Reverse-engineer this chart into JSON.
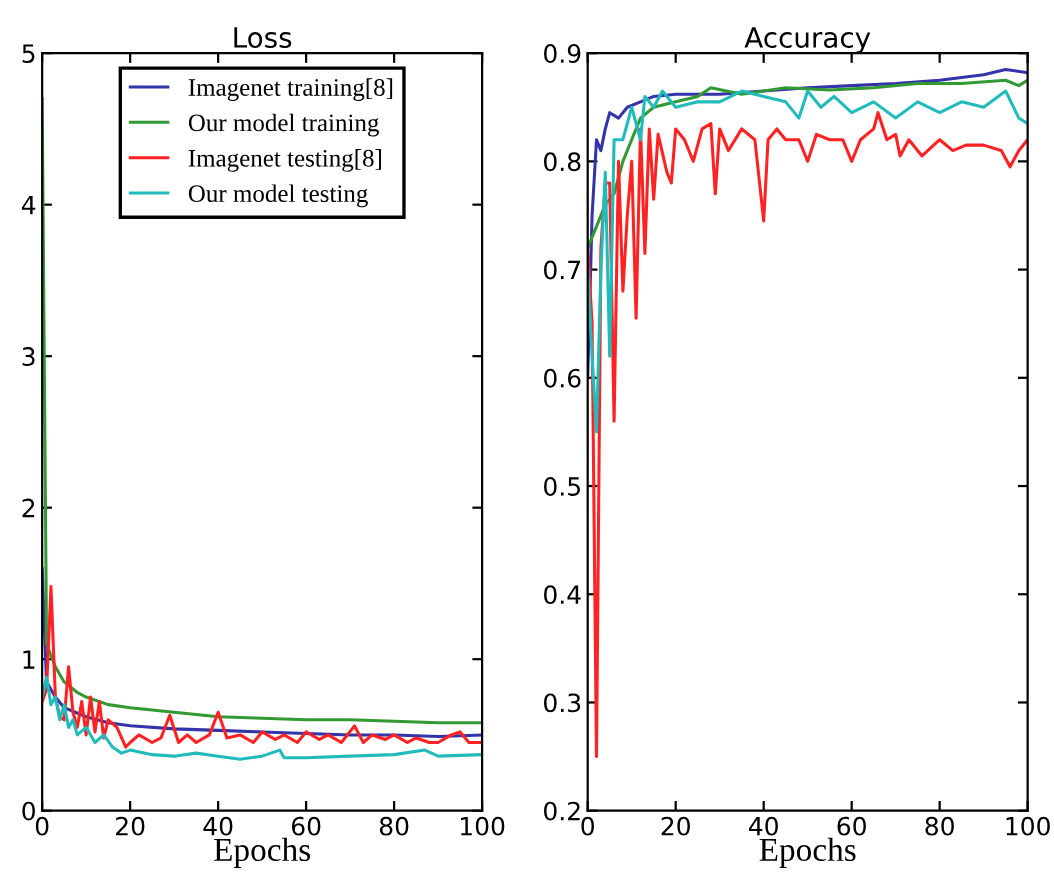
{
  "chart_data": [
    {
      "type": "line",
      "title": "Loss",
      "xlabel": "Epochs",
      "xlim": [
        0,
        100
      ],
      "xticks": [
        0,
        20,
        40,
        60,
        80,
        100
      ],
      "ylim": [
        0,
        5
      ],
      "yticks": [
        0,
        1,
        2,
        3,
        4,
        5
      ],
      "grid": false,
      "legend": "top",
      "marker": "none",
      "line_style": "solid",
      "series": [
        {
          "name": "Imagenet training[8]",
          "color": "#3333aa",
          "x": [
            0,
            1,
            3,
            5,
            10,
            15,
            20,
            30,
            40,
            50,
            60,
            70,
            80,
            90,
            100
          ],
          "values": [
            1.6,
            0.85,
            0.75,
            0.68,
            0.62,
            0.58,
            0.56,
            0.54,
            0.53,
            0.52,
            0.51,
            0.5,
            0.5,
            0.49,
            0.5
          ]
        },
        {
          "name": "Our model training",
          "color": "#339933",
          "x": [
            0,
            1,
            3,
            5,
            8,
            10,
            15,
            20,
            30,
            40,
            50,
            60,
            70,
            80,
            90,
            100
          ],
          "values": [
            4.7,
            1.1,
            0.95,
            0.85,
            0.78,
            0.75,
            0.7,
            0.68,
            0.65,
            0.62,
            0.61,
            0.6,
            0.6,
            0.59,
            0.58,
            0.58
          ]
        },
        {
          "name": "Imagenet testing[8]",
          "color": "#ff2222",
          "x": [
            0,
            1,
            2,
            3,
            4,
            5,
            6,
            7,
            8,
            9,
            10,
            11,
            12,
            13,
            14,
            15,
            17,
            19,
            20,
            22,
            25,
            27,
            29,
            31,
            33,
            35,
            38,
            40,
            42,
            45,
            48,
            50,
            53,
            55,
            58,
            60,
            63,
            65,
            68,
            71,
            73,
            75,
            78,
            80,
            83,
            85,
            88,
            90,
            93,
            95,
            97,
            100
          ],
          "values": [
            0.72,
            0.8,
            1.48,
            0.75,
            0.62,
            0.6,
            0.95,
            0.65,
            0.55,
            0.72,
            0.5,
            0.75,
            0.52,
            0.72,
            0.48,
            0.6,
            0.55,
            0.42,
            0.45,
            0.5,
            0.45,
            0.48,
            0.63,
            0.45,
            0.5,
            0.45,
            0.5,
            0.65,
            0.48,
            0.5,
            0.45,
            0.52,
            0.47,
            0.5,
            0.45,
            0.52,
            0.47,
            0.5,
            0.45,
            0.56,
            0.45,
            0.5,
            0.47,
            0.5,
            0.45,
            0.48,
            0.45,
            0.45,
            0.5,
            0.52,
            0.45,
            0.45
          ]
        },
        {
          "name": "Our model testing",
          "color": "#22bbbb",
          "x": [
            0,
            1,
            2,
            3,
            4,
            5,
            6,
            7,
            8,
            10,
            12,
            14,
            16,
            18,
            20,
            25,
            30,
            35,
            40,
            45,
            50,
            54,
            55,
            60,
            70,
            80,
            87,
            90,
            100
          ],
          "values": [
            0.75,
            0.88,
            0.7,
            0.75,
            0.6,
            0.7,
            0.55,
            0.6,
            0.5,
            0.55,
            0.45,
            0.5,
            0.42,
            0.38,
            0.4,
            0.37,
            0.36,
            0.38,
            0.36,
            0.34,
            0.36,
            0.4,
            0.35,
            0.35,
            0.36,
            0.37,
            0.4,
            0.36,
            0.37
          ]
        }
      ]
    },
    {
      "type": "line",
      "title": "Accuracy",
      "xlabel": "Epochs",
      "xlim": [
        0,
        100
      ],
      "xticks": [
        0,
        20,
        40,
        60,
        80,
        100
      ],
      "ylim": [
        0.2,
        0.9
      ],
      "yticks": [
        0.2,
        0.3,
        0.4,
        0.5,
        0.6,
        0.7,
        0.8,
        0.9
      ],
      "grid": false,
      "marker": "none",
      "line_style": "solid",
      "series": [
        {
          "color": "#3333aa",
          "x": [
            0,
            1,
            2,
            3,
            4,
            5,
            7,
            9,
            12,
            15,
            20,
            30,
            40,
            50,
            60,
            70,
            80,
            90,
            95,
            100
          ],
          "values": [
            0.6,
            0.75,
            0.82,
            0.81,
            0.83,
            0.845,
            0.84,
            0.85,
            0.855,
            0.86,
            0.862,
            0.862,
            0.865,
            0.868,
            0.87,
            0.872,
            0.875,
            0.88,
            0.885,
            0.882
          ]
        },
        {
          "color": "#339933",
          "x": [
            0,
            2,
            4,
            6,
            8,
            10,
            12,
            15,
            20,
            25,
            28,
            35,
            45,
            55,
            65,
            75,
            85,
            95,
            98,
            100
          ],
          "values": [
            0.72,
            0.74,
            0.76,
            0.77,
            0.8,
            0.82,
            0.84,
            0.85,
            0.855,
            0.86,
            0.868,
            0.862,
            0.868,
            0.866,
            0.868,
            0.872,
            0.872,
            0.875,
            0.87,
            0.875
          ]
        },
        {
          "color": "#ff2222",
          "x": [
            0,
            1,
            2,
            3,
            4,
            5,
            6,
            7,
            8,
            9,
            10,
            11,
            12,
            13,
            14,
            15,
            16,
            18,
            19,
            20,
            22,
            24,
            26,
            28,
            29,
            30,
            32,
            35,
            38,
            40,
            41,
            43,
            45,
            48,
            50,
            52,
            55,
            58,
            60,
            62,
            65,
            66,
            68,
            70,
            71,
            73,
            76,
            80,
            83,
            86,
            90,
            94,
            96,
            98,
            100
          ],
          "values": [
            0.72,
            0.65,
            0.25,
            0.72,
            0.78,
            0.78,
            0.56,
            0.8,
            0.68,
            0.75,
            0.8,
            0.655,
            0.83,
            0.715,
            0.83,
            0.765,
            0.825,
            0.79,
            0.78,
            0.83,
            0.82,
            0.8,
            0.83,
            0.835,
            0.77,
            0.83,
            0.81,
            0.83,
            0.82,
            0.745,
            0.82,
            0.83,
            0.82,
            0.82,
            0.8,
            0.825,
            0.82,
            0.82,
            0.8,
            0.82,
            0.83,
            0.845,
            0.82,
            0.825,
            0.805,
            0.82,
            0.805,
            0.82,
            0.81,
            0.815,
            0.815,
            0.81,
            0.795,
            0.81,
            0.82
          ]
        },
        {
          "color": "#22bbbb",
          "x": [
            0,
            1,
            2,
            3,
            4,
            5,
            6,
            8,
            10,
            12,
            13,
            15,
            17,
            20,
            25,
            30,
            35,
            40,
            45,
            48,
            50,
            53,
            56,
            60,
            65,
            70,
            75,
            80,
            85,
            90,
            95,
            98,
            100
          ],
          "values": [
            0.7,
            0.62,
            0.55,
            0.7,
            0.79,
            0.62,
            0.82,
            0.82,
            0.85,
            0.82,
            0.86,
            0.85,
            0.865,
            0.85,
            0.855,
            0.855,
            0.865,
            0.86,
            0.855,
            0.84,
            0.865,
            0.85,
            0.86,
            0.845,
            0.855,
            0.84,
            0.855,
            0.845,
            0.855,
            0.85,
            0.865,
            0.84,
            0.835
          ]
        }
      ]
    }
  ]
}
